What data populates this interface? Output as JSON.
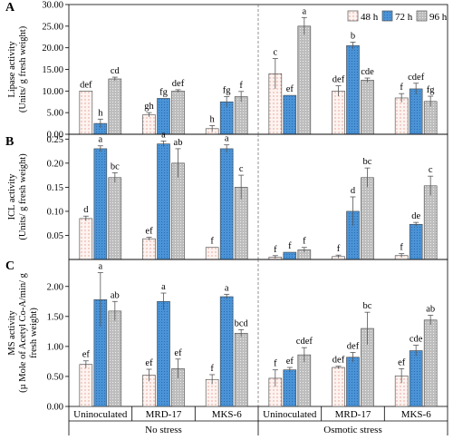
{
  "legend": {
    "items": [
      {
        "label": "48 h",
        "pattern": "dots"
      },
      {
        "label": "72 h",
        "pattern": "blue"
      },
      {
        "label": "96 h",
        "pattern": "gray"
      }
    ],
    "placement": "top-right"
  },
  "colors": {
    "h48_fill": "#fdf3f0",
    "h48_dot": "#e39a8c",
    "h72_fill": "#4a93d6",
    "h72_dot": "#1b5aa0",
    "h96_fill": "#bdbdbd",
    "h96_dot": "#ffffff"
  },
  "x_axis": {
    "groups": [
      "Uninoculated",
      "MRD-17",
      "MKS-6",
      "Uninoculated",
      "MRD-17",
      "MKS-6"
    ],
    "conditions": [
      "No stress",
      "Osmotic stress"
    ]
  },
  "chart_data": [
    {
      "type": "bar",
      "panel_label": "A",
      "ylabel_lines": [
        "Lipase activity",
        "(Units/ g fresh weight)"
      ],
      "ylim": [
        0,
        30
      ],
      "yticks": [
        "0.00",
        "5.00",
        "10.00",
        "15.00",
        "20.00",
        "25.00",
        "30.00"
      ],
      "categories": [
        "Uninoculated",
        "MRD-17",
        "MKS-6",
        "Uninoculated",
        "MRD-17",
        "MKS-6"
      ],
      "series": [
        {
          "name": "48 h",
          "values": [
            10.0,
            4.5,
            1.3,
            14.0,
            10.0,
            8.4
          ],
          "errors": [
            0.0,
            0.5,
            0.7,
            3.5,
            1.2,
            1.0
          ],
          "letters": [
            "def",
            "gh",
            "h",
            "c",
            "def",
            "f"
          ]
        },
        {
          "name": "72 h",
          "values": [
            2.5,
            8.3,
            7.5,
            9.0,
            20.5,
            10.5
          ],
          "errors": [
            1.0,
            0.0,
            1.2,
            0.0,
            0.8,
            1.3
          ],
          "letters": [
            "h",
            "fg",
            "fg",
            "ef",
            "b",
            "cdef"
          ]
        },
        {
          "name": "96 h",
          "values": [
            12.8,
            10.0,
            8.7,
            25.0,
            12.5,
            7.6
          ],
          "errors": [
            0.4,
            0.3,
            1.2,
            2.0,
            0.5,
            1.2
          ],
          "letters": [
            "cd",
            "def",
            "f",
            "a",
            "cde",
            "fg"
          ]
        }
      ]
    },
    {
      "type": "bar",
      "panel_label": "B",
      "ylabel_lines": [
        "ICL activity",
        "(Units/ g fresh weight)"
      ],
      "ylim": [
        0,
        0.26
      ],
      "yticks": [
        "0.05",
        "0.10",
        "0.15",
        "0.20",
        "0.25"
      ],
      "ytick_values": [
        0.05,
        0.1,
        0.15,
        0.2,
        0.25
      ],
      "categories": [
        "Uninoculated",
        "MRD-17",
        "MKS-6",
        "Uninoculated",
        "MRD-17",
        "MKS-6"
      ],
      "series": [
        {
          "name": "48 h",
          "values": [
            0.085,
            0.043,
            0.025,
            0.005,
            0.006,
            0.008
          ],
          "errors": [
            0.005,
            0.003,
            0.0,
            0.003,
            0.003,
            0.004
          ],
          "letters": [
            "d",
            "ef",
            "f",
            "f",
            "f",
            "f"
          ]
        },
        {
          "name": "72 h",
          "values": [
            0.23,
            0.24,
            0.23,
            0.015,
            0.1,
            0.073
          ],
          "errors": [
            0.006,
            0.006,
            0.008,
            0.0,
            0.03,
            0.004
          ],
          "letters": [
            "a",
            "a",
            "a",
            "f",
            "d",
            "de"
          ]
        },
        {
          "name": "96 h",
          "values": [
            0.17,
            0.2,
            0.15,
            0.02,
            0.17,
            0.153
          ],
          "errors": [
            0.01,
            0.03,
            0.025,
            0.005,
            0.02,
            0.02
          ],
          "letters": [
            "bc",
            "ab",
            "c",
            "f",
            "bc",
            "c"
          ]
        }
      ]
    },
    {
      "type": "bar",
      "panel_label": "C",
      "ylabel_lines": [
        "MS activity",
        "(µ Mole of Acetyl Co-A/min/ g",
        "fresh weight)"
      ],
      "ylim": [
        0,
        2.45
      ],
      "yticks": [
        "0.00",
        "0.50",
        "1.00",
        "1.50",
        "2.00"
      ],
      "ytick_values": [
        0.0,
        0.5,
        1.0,
        1.5,
        2.0
      ],
      "categories": [
        "Uninoculated",
        "MRD-17",
        "MKS-6",
        "Uninoculated",
        "MRD-17",
        "MKS-6"
      ],
      "series": [
        {
          "name": "48 h",
          "values": [
            0.7,
            0.52,
            0.45,
            0.47,
            0.65,
            0.51
          ],
          "errors": [
            0.06,
            0.1,
            0.08,
            0.14,
            0.02,
            0.12
          ],
          "letters": [
            "ef",
            "ef",
            "f",
            "f",
            "def",
            "ef"
          ]
        },
        {
          "name": "72 h",
          "values": [
            1.78,
            1.75,
            1.83,
            0.61,
            0.82,
            0.93
          ],
          "errors": [
            0.45,
            0.14,
            0.04,
            0.04,
            0.08,
            0.09
          ],
          "letters": [
            "a",
            "a",
            "a",
            "ef",
            "def",
            "cde"
          ]
        },
        {
          "name": "96 h",
          "values": [
            1.59,
            0.63,
            1.22,
            0.86,
            1.3,
            1.44
          ],
          "errors": [
            0.16,
            0.16,
            0.06,
            0.12,
            0.27,
            0.08
          ],
          "letters": [
            "ab",
            "ef",
            "bcd",
            "cdef",
            "bc",
            "ab"
          ]
        }
      ]
    }
  ]
}
